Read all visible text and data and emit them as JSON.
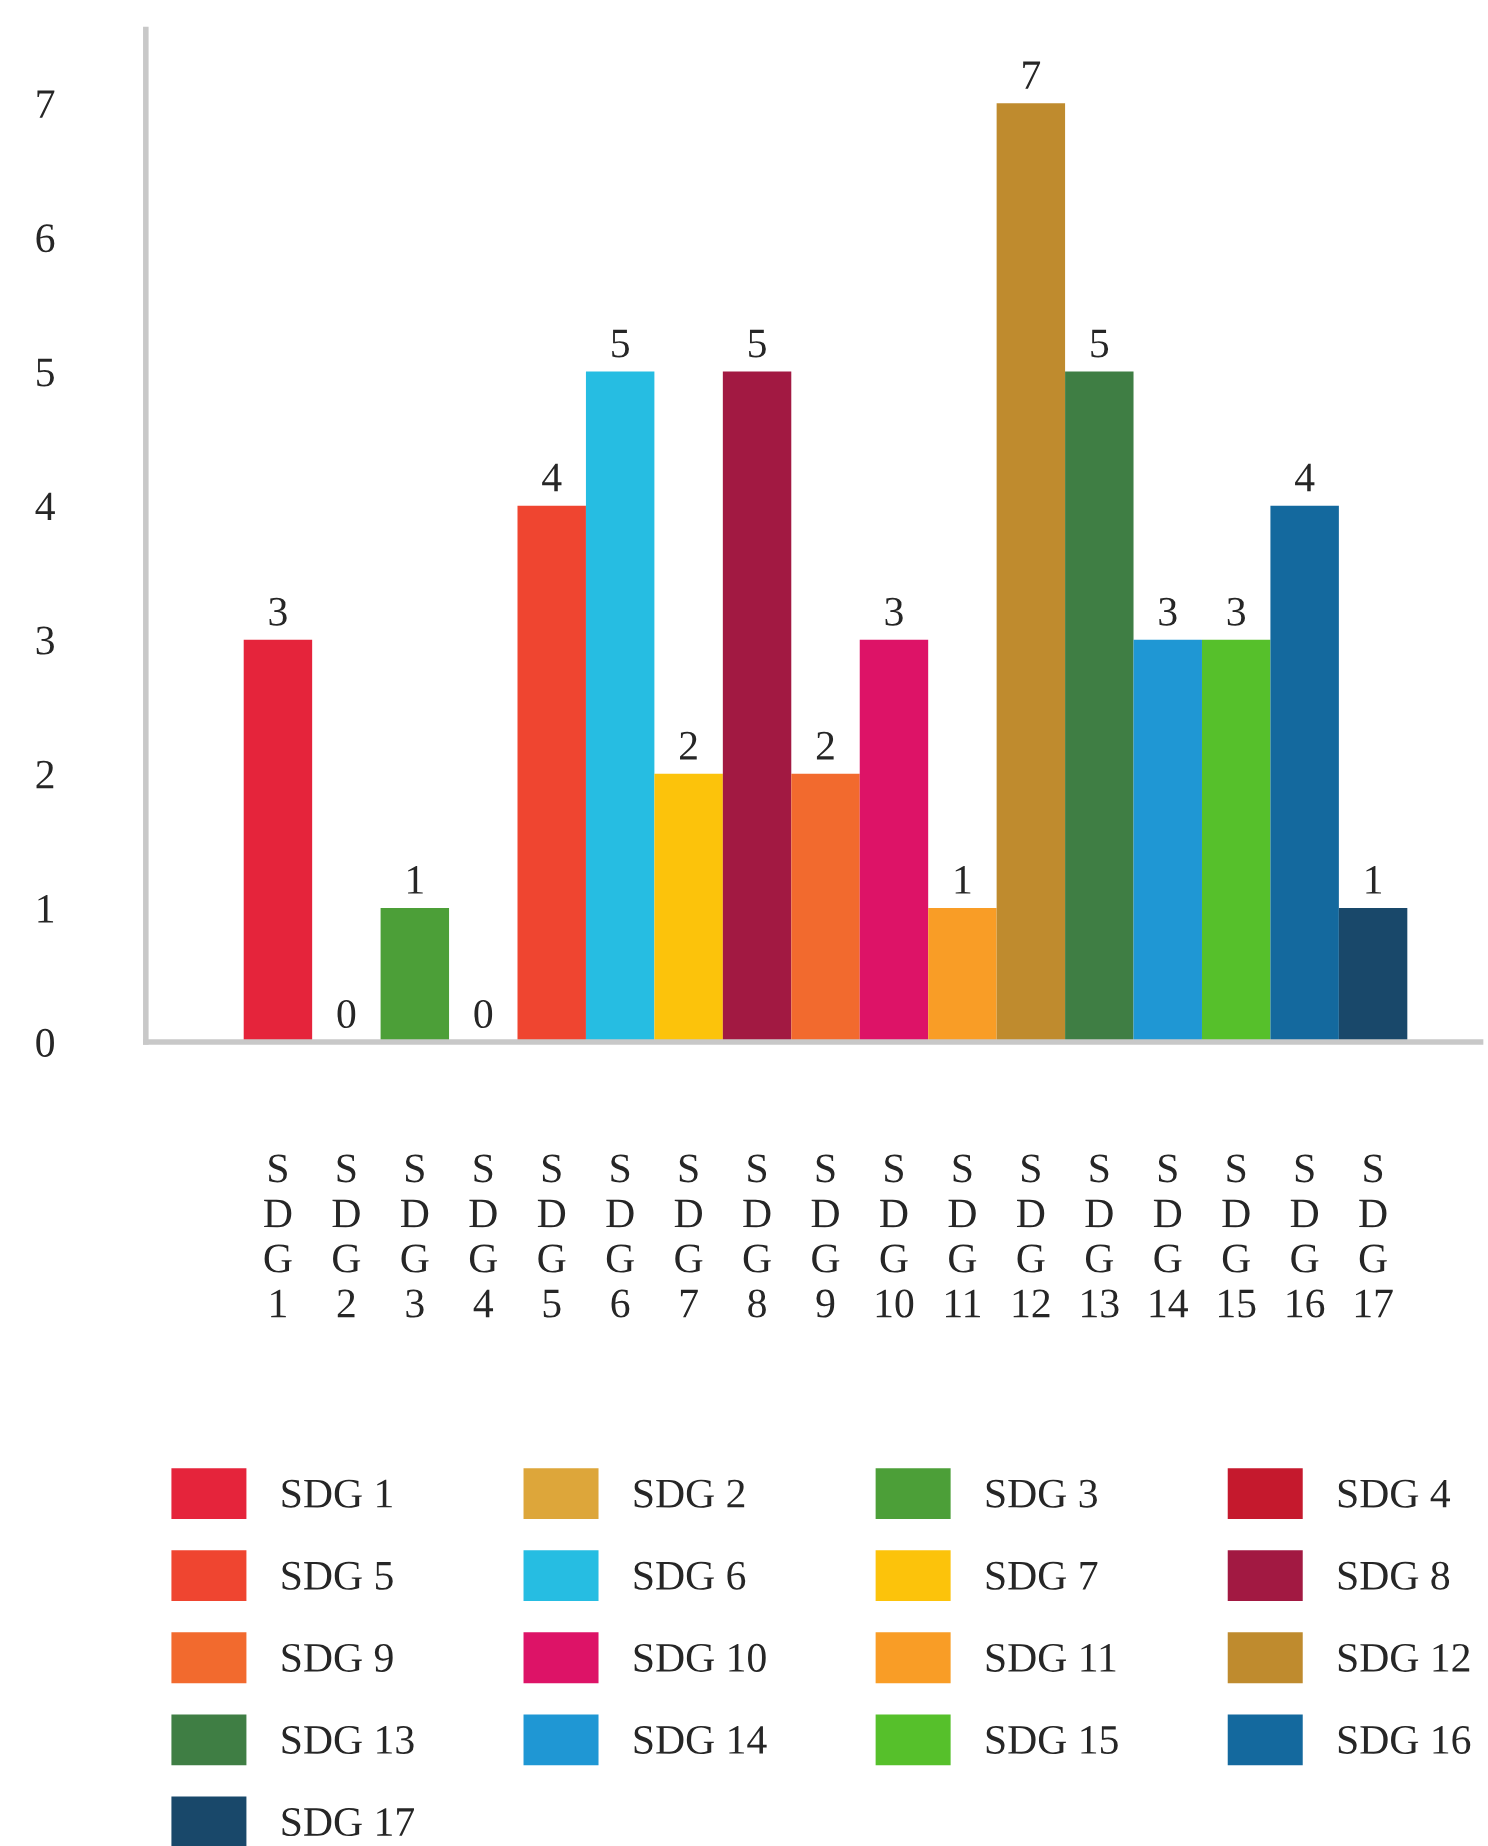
{
  "chart_data": {
    "type": "bar",
    "stacked": true,
    "categories": [
      "SDG 1",
      "SDG 2",
      "SDG 3",
      "SDG 4",
      "SDG 5",
      "SDG 6",
      "SDG 7",
      "SDG 8",
      "SDG 9",
      "SDG 10",
      "SDG 11",
      "SDG 12",
      "SDG 13",
      "SDG 14",
      "SDG 15",
      "SDG 16",
      "SDG 17"
    ],
    "series": [
      {
        "name": "SDG 1",
        "color": "#e5243b",
        "values": [
          3,
          null,
          null,
          null,
          null,
          null,
          null,
          null,
          null,
          null,
          null,
          null,
          null,
          null,
          null,
          null,
          null
        ]
      },
      {
        "name": "SDG 2",
        "color": "#dda63a",
        "values": [
          null,
          0,
          null,
          null,
          null,
          null,
          null,
          null,
          null,
          null,
          null,
          null,
          null,
          null,
          null,
          null,
          null
        ]
      },
      {
        "name": "SDG 3",
        "color": "#4c9f38",
        "values": [
          null,
          null,
          1,
          null,
          null,
          null,
          null,
          null,
          null,
          null,
          null,
          null,
          null,
          null,
          null,
          null,
          null
        ]
      },
      {
        "name": "SDG 4",
        "color": "#c5192d",
        "values": [
          null,
          null,
          null,
          0,
          null,
          null,
          null,
          null,
          null,
          null,
          null,
          null,
          null,
          null,
          null,
          null,
          null
        ]
      },
      {
        "name": "SDG 5",
        "color": "#ef4530",
        "values": [
          null,
          null,
          null,
          null,
          4,
          null,
          null,
          null,
          null,
          null,
          null,
          null,
          null,
          null,
          null,
          null,
          null
        ]
      },
      {
        "name": "SDG 6",
        "color": "#26bde2",
        "values": [
          null,
          null,
          null,
          null,
          null,
          5,
          null,
          null,
          null,
          null,
          null,
          null,
          null,
          null,
          null,
          null,
          null
        ]
      },
      {
        "name": "SDG 7",
        "color": "#fcc30b",
        "values": [
          null,
          null,
          null,
          null,
          null,
          null,
          2,
          null,
          null,
          null,
          null,
          null,
          null,
          null,
          null,
          null,
          null
        ]
      },
      {
        "name": "SDG 8",
        "color": "#a21942",
        "values": [
          null,
          null,
          null,
          null,
          null,
          null,
          null,
          5,
          null,
          null,
          null,
          null,
          null,
          null,
          null,
          null,
          null
        ]
      },
      {
        "name": "SDG 9",
        "color": "#f26a2e",
        "values": [
          null,
          null,
          null,
          null,
          null,
          null,
          null,
          null,
          2,
          null,
          null,
          null,
          null,
          null,
          null,
          null,
          null
        ]
      },
      {
        "name": "SDG 10",
        "color": "#dd1367",
        "values": [
          null,
          null,
          null,
          null,
          null,
          null,
          null,
          null,
          null,
          3,
          null,
          null,
          null,
          null,
          null,
          null,
          null
        ]
      },
      {
        "name": "SDG 11",
        "color": "#f99d26",
        "values": [
          null,
          null,
          null,
          null,
          null,
          null,
          null,
          null,
          null,
          null,
          1,
          null,
          null,
          null,
          null,
          null,
          null
        ]
      },
      {
        "name": "SDG 12",
        "color": "#bf8b2e",
        "values": [
          null,
          null,
          null,
          null,
          null,
          null,
          null,
          null,
          null,
          null,
          null,
          7,
          null,
          null,
          null,
          null,
          null
        ]
      },
      {
        "name": "SDG 13",
        "color": "#3f7e44",
        "values": [
          null,
          null,
          null,
          null,
          null,
          null,
          null,
          null,
          null,
          null,
          null,
          null,
          5,
          null,
          null,
          null,
          null
        ]
      },
      {
        "name": "SDG 14",
        "color": "#1f97d4",
        "values": [
          null,
          null,
          null,
          null,
          null,
          null,
          null,
          null,
          null,
          null,
          null,
          null,
          null,
          3,
          null,
          null,
          null
        ]
      },
      {
        "name": "SDG 15",
        "color": "#56c02b",
        "values": [
          null,
          null,
          null,
          null,
          null,
          null,
          null,
          null,
          null,
          null,
          null,
          null,
          null,
          null,
          3,
          null,
          null
        ]
      },
      {
        "name": "SDG 16",
        "color": "#14699e",
        "values": [
          null,
          null,
          null,
          null,
          null,
          null,
          null,
          null,
          null,
          null,
          null,
          null,
          null,
          null,
          null,
          4,
          null
        ]
      },
      {
        "name": "SDG 17",
        "color": "#19486a",
        "values": [
          null,
          null,
          null,
          null,
          null,
          null,
          null,
          null,
          null,
          null,
          null,
          null,
          null,
          null,
          null,
          null,
          1
        ]
      }
    ],
    "ylim": [
      0,
      7.55
    ],
    "yticks": [
      0,
      1,
      2,
      3,
      4,
      5,
      6,
      7
    ],
    "data_labels": true,
    "grid": false,
    "legend": "bottom"
  }
}
